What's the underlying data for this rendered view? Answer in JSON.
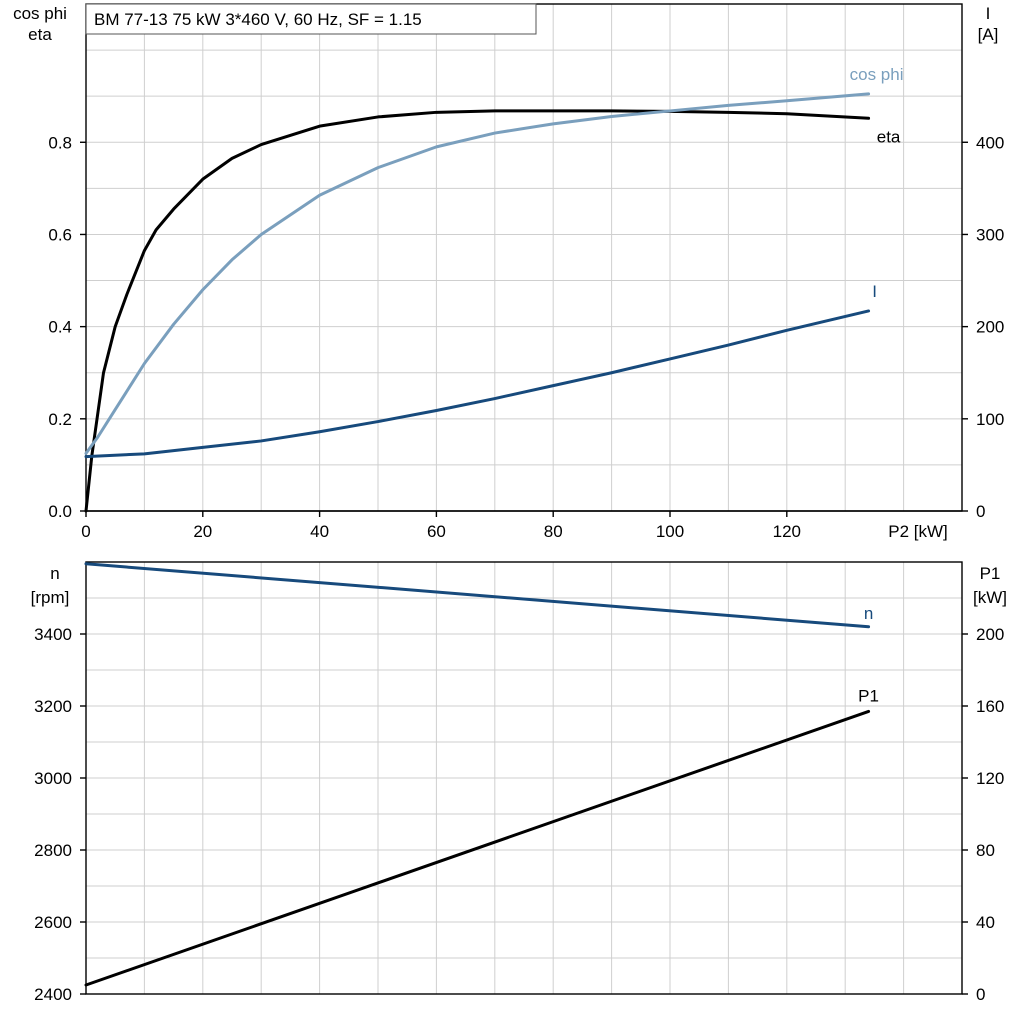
{
  "header": {
    "title": "BM 77-13   75 kW   3*460 V, 60 Hz, SF = 1.15"
  },
  "colors": {
    "eta": "#000000",
    "cos_phi": "#7a9fbd",
    "current": "#174a7c",
    "speed": "#174a7c",
    "p1": "#000000"
  },
  "chart_data": [
    {
      "type": "line",
      "x_label": "P2 [kW]",
      "y_left_label": [
        "cos phi",
        "eta"
      ],
      "y_right_label": [
        "I",
        "[A]"
      ],
      "x_ticks": [
        0,
        20,
        40,
        60,
        80,
        100,
        120
      ],
      "y_left_ticks": [
        0.0,
        0.2,
        0.4,
        0.6,
        0.8
      ],
      "y_right_ticks": [
        0,
        100,
        200,
        300,
        400
      ],
      "x_range": [
        0,
        150
      ],
      "y_left_range": [
        0,
        1.1
      ],
      "y_right_range": [
        0,
        550
      ],
      "grid": true,
      "series": [
        {
          "name": "eta",
          "axis": "left",
          "color_key": "eta",
          "x": [
            0,
            1,
            2,
            3,
            5,
            7,
            10,
            12,
            15,
            20,
            25,
            30,
            40,
            50,
            60,
            70,
            80,
            90,
            100,
            110,
            120,
            134
          ],
          "y": [
            0.0,
            0.12,
            0.21,
            0.3,
            0.4,
            0.47,
            0.565,
            0.61,
            0.655,
            0.72,
            0.765,
            0.795,
            0.835,
            0.855,
            0.865,
            0.868,
            0.868,
            0.868,
            0.867,
            0.865,
            0.862,
            0.852
          ]
        },
        {
          "name": "cos phi",
          "axis": "left",
          "color_key": "cos_phi",
          "x": [
            0,
            2,
            5,
            10,
            15,
            20,
            25,
            30,
            40,
            50,
            60,
            70,
            80,
            90,
            100,
            110,
            120,
            134
          ],
          "y": [
            0.125,
            0.16,
            0.22,
            0.32,
            0.405,
            0.48,
            0.545,
            0.6,
            0.685,
            0.745,
            0.79,
            0.82,
            0.84,
            0.856,
            0.868,
            0.88,
            0.89,
            0.905
          ]
        },
        {
          "name": "I",
          "axis": "right",
          "color_key": "current",
          "x": [
            0,
            10,
            20,
            30,
            40,
            50,
            60,
            70,
            80,
            90,
            100,
            110,
            120,
            134
          ],
          "y": [
            59,
            62,
            69,
            76,
            86,
            97,
            109,
            122,
            136,
            150,
            165,
            180,
            196,
            217
          ]
        }
      ]
    },
    {
      "type": "line",
      "x_range": [
        0,
        150
      ],
      "y_left_label": [
        "n",
        "[rpm]"
      ],
      "y_right_label": [
        "P1",
        "[kW]"
      ],
      "y_left_ticks": [
        2400,
        2600,
        2800,
        3000,
        3200,
        3400
      ],
      "y_right_ticks": [
        0,
        40,
        80,
        120,
        160,
        200
      ],
      "y_left_range": [
        2400,
        3600
      ],
      "y_right_range": [
        0,
        240
      ],
      "grid": true,
      "series": [
        {
          "name": "n",
          "axis": "left",
          "color_key": "speed",
          "x": [
            0,
            134
          ],
          "y": [
            3595,
            3420
          ]
        },
        {
          "name": "P1",
          "axis": "right",
          "color_key": "p1",
          "x": [
            0,
            134
          ],
          "y": [
            5,
            157
          ]
        }
      ]
    }
  ]
}
